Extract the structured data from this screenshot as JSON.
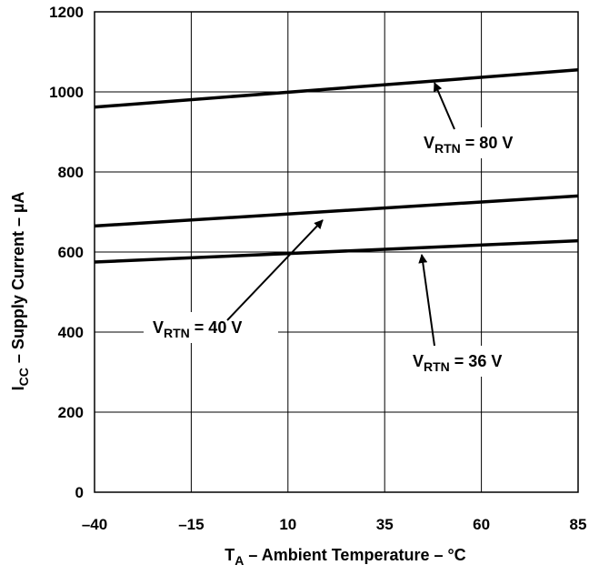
{
  "chart_data": {
    "type": "line",
    "x": [
      -40,
      85
    ],
    "series": [
      {
        "name": "VRTN = 80 V",
        "values": [
          962,
          1055
        ]
      },
      {
        "name": "VRTN = 40 V",
        "values": [
          665,
          740
        ]
      },
      {
        "name": "VRTN = 36 V",
        "values": [
          575,
          628
        ]
      }
    ],
    "xlim": [
      -40,
      85
    ],
    "ylim": [
      0,
      1200
    ],
    "xticks": [
      -40,
      -15,
      10,
      35,
      60,
      85
    ],
    "yticks": [
      0,
      200,
      400,
      600,
      800,
      1000,
      1200
    ],
    "xtick_labels": [
      "–40",
      "–15",
      "10",
      "35",
      "60",
      "85"
    ],
    "ytick_labels": [
      "0",
      "200",
      "400",
      "600",
      "800",
      "1000",
      "1200"
    ],
    "xlabel": {
      "main": "T",
      "sub": "A",
      "rest": " – Ambient Temperature – °C"
    },
    "ylabel": {
      "main": "I",
      "sub": "CC",
      "rest": " – Supply Current – µA"
    },
    "grid": true,
    "annotations": [
      {
        "v": "V",
        "sub": "RTN",
        "rest": " = 80 V"
      },
      {
        "v": "V",
        "sub": "RTN",
        "rest": " = 40 V"
      },
      {
        "v": "V",
        "sub": "RTN",
        "rest": " = 36 V"
      }
    ]
  }
}
